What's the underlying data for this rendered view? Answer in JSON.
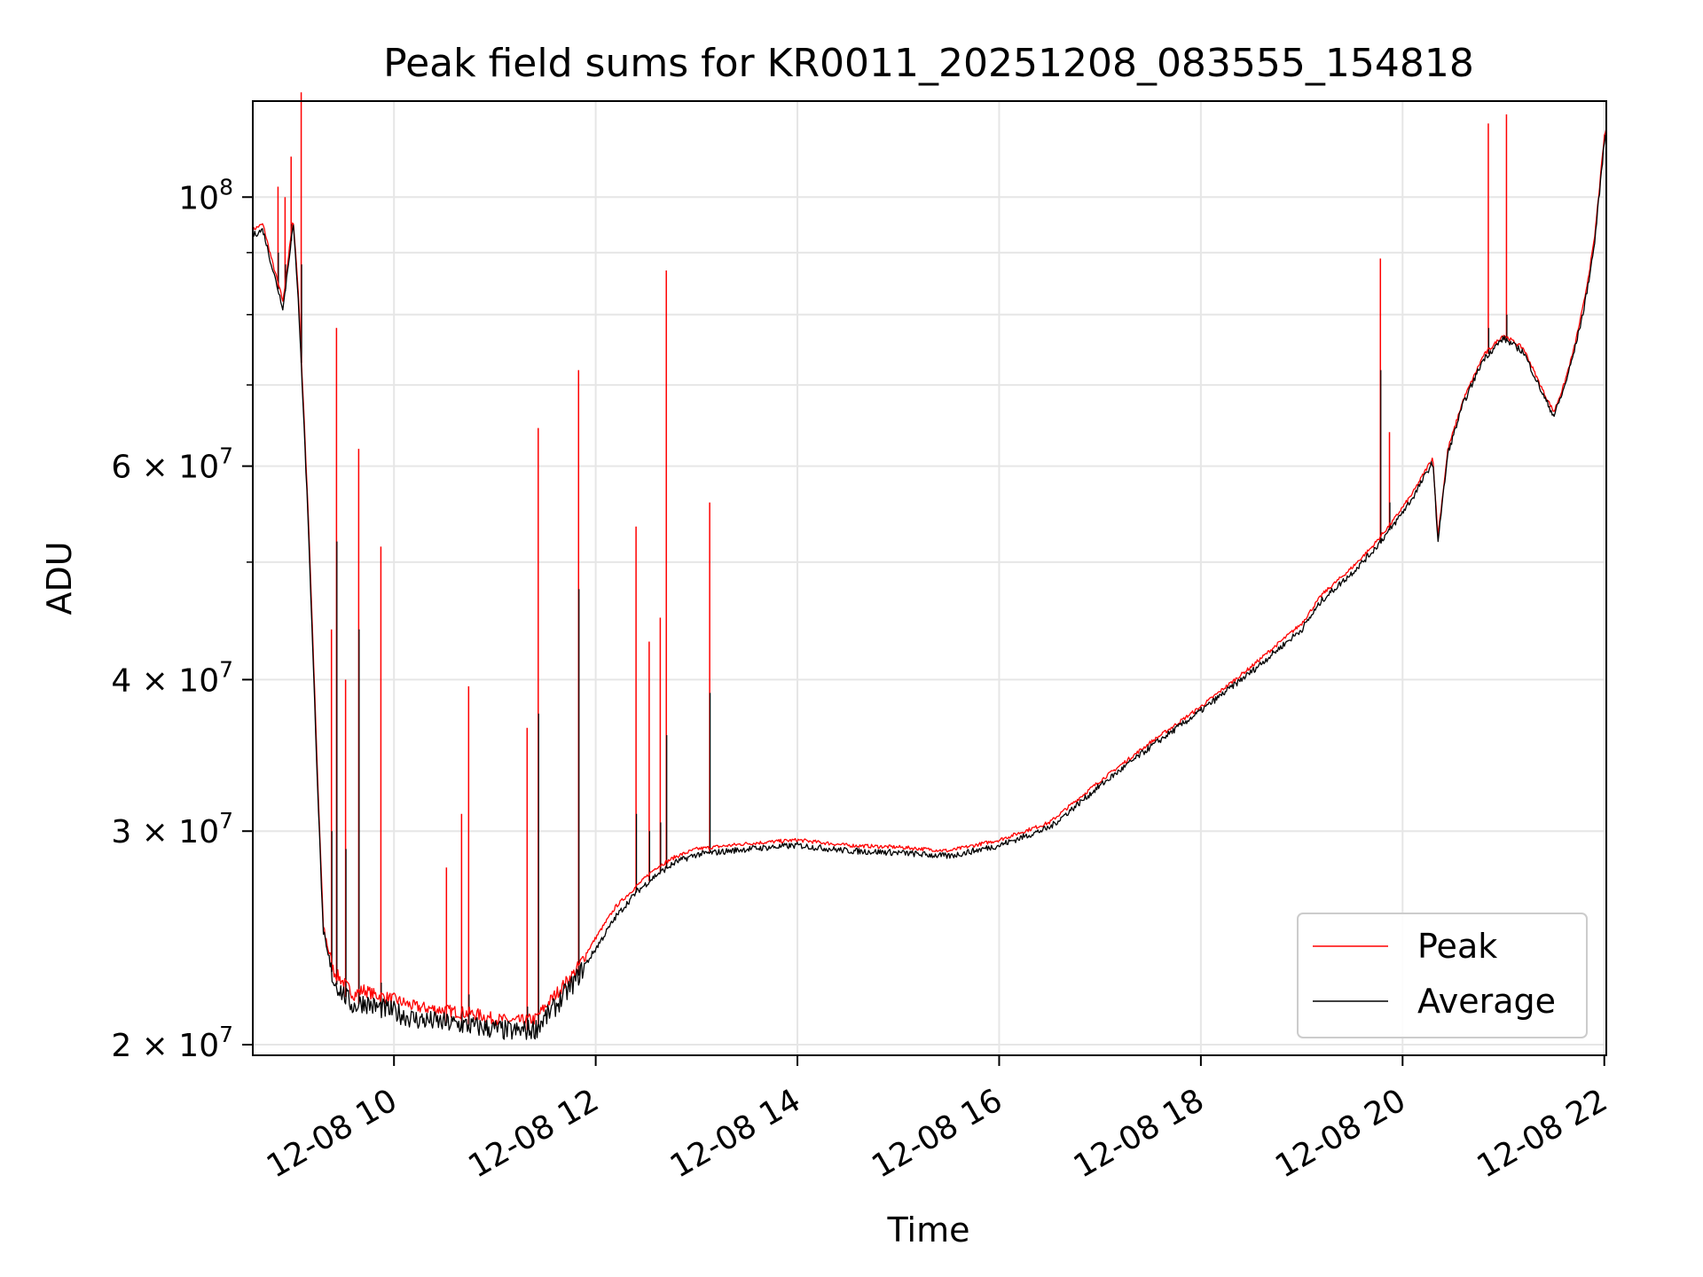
{
  "chart_data": {
    "type": "line",
    "title": "Peak field sums for KR0011_20251208_083555_154818",
    "xlabel": "Time",
    "ylabel": "ADU",
    "yscale": "log",
    "ylim": [
      19600000,
      120000000
    ],
    "xlim_hours": [
      8.6,
      22.02
    ],
    "grid": true,
    "legend_position": "lower-right",
    "x_ticks": [
      {
        "hour": 10,
        "label": "12-08 10"
      },
      {
        "hour": 12,
        "label": "12-08 12"
      },
      {
        "hour": 14,
        "label": "12-08 14"
      },
      {
        "hour": 16,
        "label": "12-08 16"
      },
      {
        "hour": 18,
        "label": "12-08 18"
      },
      {
        "hour": 20,
        "label": "12-08 20"
      },
      {
        "hour": 22,
        "label": "12-08 22"
      }
    ],
    "y_major_ticks": [
      {
        "value": 20000000,
        "mantissa": "2",
        "exp": "7"
      },
      {
        "value": 30000000,
        "mantissa": "3",
        "exp": "7"
      },
      {
        "value": 40000000,
        "mantissa": "4",
        "exp": "7"
      },
      {
        "value": 60000000,
        "mantissa": "6",
        "exp": "7"
      },
      {
        "value": 100000000,
        "mantissa": "",
        "exp": "8"
      }
    ],
    "y_minor_gridlines": [
      50000000,
      70000000,
      80000000,
      90000000
    ],
    "series": [
      {
        "name": "Peak",
        "color": "#ff0000",
        "x_hours": [
          8.6,
          8.7,
          8.8,
          8.9,
          9.0,
          9.05,
          9.1,
          9.15,
          9.2,
          9.25,
          9.3,
          9.4,
          9.5,
          9.6,
          9.7,
          9.8,
          10.0,
          10.2,
          10.4,
          10.6,
          10.8,
          11.0,
          11.2,
          11.4,
          11.6,
          11.8,
          12.0,
          12.2,
          12.4,
          12.6,
          12.8,
          13.0,
          13.5,
          14.0,
          14.5,
          15.0,
          15.5,
          16.0,
          16.5,
          17.0,
          17.5,
          18.0,
          18.5,
          19.0,
          19.2,
          19.5,
          19.7,
          19.9,
          20.1,
          20.3,
          20.35,
          20.45,
          20.6,
          20.8,
          21.0,
          21.2,
          21.4,
          21.5,
          21.6,
          21.7,
          21.8,
          21.9,
          22.0,
          22.02
        ],
        "values": [
          94000000,
          95000000,
          88000000,
          82000000,
          96000000,
          84000000,
          68000000,
          55000000,
          42000000,
          32000000,
          25000000,
          23000000,
          22500000,
          22000000,
          22200000,
          22000000,
          21800000,
          21500000,
          21400000,
          21300000,
          21200000,
          21000000,
          20900000,
          21000000,
          22000000,
          23000000,
          24500000,
          26000000,
          27000000,
          28000000,
          28600000,
          29000000,
          29300000,
          29500000,
          29200000,
          29100000,
          28900000,
          29500000,
          30500000,
          33000000,
          35500000,
          38000000,
          41000000,
          44500000,
          47000000,
          49500000,
          51500000,
          54000000,
          57000000,
          61000000,
          52500000,
          62000000,
          68000000,
          74000000,
          77000000,
          75000000,
          69000000,
          66500000,
          70000000,
          75000000,
          82000000,
          92000000,
          112000000,
          114000000
        ]
      },
      {
        "name": "Average",
        "color": "#000000",
        "x_hours": [
          8.6,
          8.7,
          8.8,
          8.9,
          9.0,
          9.05,
          9.1,
          9.15,
          9.2,
          9.25,
          9.3,
          9.4,
          9.5,
          9.6,
          9.7,
          9.8,
          10.0,
          10.2,
          10.4,
          10.6,
          10.8,
          11.0,
          11.2,
          11.4,
          11.6,
          11.8,
          12.0,
          12.2,
          12.4,
          12.6,
          12.8,
          13.0,
          13.5,
          14.0,
          14.5,
          15.0,
          15.5,
          16.0,
          16.5,
          17.0,
          17.5,
          18.0,
          18.5,
          19.0,
          19.2,
          19.5,
          19.7,
          19.9,
          20.1,
          20.3,
          20.35,
          20.45,
          20.6,
          20.8,
          21.0,
          21.2,
          21.4,
          21.5,
          21.6,
          21.7,
          21.8,
          21.9,
          22.0,
          22.02
        ],
        "values": [
          93000000,
          94000000,
          87000000,
          81000000,
          95000000,
          83000000,
          67000000,
          54000000,
          41000000,
          31500000,
          24500000,
          22600000,
          22000000,
          21500000,
          21700000,
          21500000,
          21300000,
          21000000,
          20900000,
          20800000,
          20700000,
          20600000,
          20500000,
          20600000,
          21500000,
          22600000,
          24000000,
          25500000,
          26700000,
          27600000,
          28300000,
          28700000,
          29000000,
          29200000,
          28900000,
          28800000,
          28600000,
          29200000,
          30200000,
          32700000,
          35200000,
          37700000,
          40600000,
          44000000,
          46500000,
          49000000,
          51000000,
          53500000,
          56500000,
          60500000,
          52000000,
          61500000,
          67500000,
          73500000,
          76500000,
          74500000,
          68500000,
          66000000,
          69500000,
          74500000,
          81000000,
          91000000,
          111000000,
          113000000
        ]
      }
    ],
    "spikes": [
      {
        "hour": 8.85,
        "peak": 102000000,
        "average": 90000000
      },
      {
        "hour": 8.92,
        "peak": 100000000,
        "average": 88000000
      },
      {
        "hour": 8.98,
        "peak": 108000000,
        "average": 95000000
      },
      {
        "hour": 9.08,
        "peak": 122000000,
        "average": 88000000
      },
      {
        "hour": 9.43,
        "peak": 78000000,
        "average": 52000000
      },
      {
        "hour": 9.65,
        "peak": 62000000,
        "average": 44000000
      },
      {
        "hour": 9.87,
        "peak": 51500000,
        "average": 22500000
      },
      {
        "hour": 9.38,
        "peak": 44000000,
        "average": 30000000
      },
      {
        "hour": 9.52,
        "peak": 40000000,
        "average": 29000000
      },
      {
        "hour": 10.74,
        "peak": 39500000,
        "average": 22000000
      },
      {
        "hour": 10.67,
        "peak": 31000000,
        "average": 21500000
      },
      {
        "hour": 10.52,
        "peak": 28000000,
        "average": 21200000
      },
      {
        "hour": 11.32,
        "peak": 36500000,
        "average": 21500000
      },
      {
        "hour": 11.43,
        "peak": 64500000,
        "average": 37500000
      },
      {
        "hour": 11.83,
        "peak": 72000000,
        "average": 47500000
      },
      {
        "hour": 12.4,
        "peak": 53500000,
        "average": 31000000
      },
      {
        "hour": 12.53,
        "peak": 43000000,
        "average": 30000000
      },
      {
        "hour": 12.64,
        "peak": 45000000,
        "average": 30500000
      },
      {
        "hour": 12.7,
        "peak": 87000000,
        "average": 36000000
      },
      {
        "hour": 13.13,
        "peak": 56000000,
        "average": 39000000
      },
      {
        "hour": 19.78,
        "peak": 89000000,
        "average": 72000000
      },
      {
        "hour": 19.87,
        "peak": 64000000,
        "average": 56000000
      },
      {
        "hour": 20.85,
        "peak": 115000000,
        "average": 78000000
      },
      {
        "hour": 21.03,
        "peak": 117000000,
        "average": 80000000
      }
    ]
  }
}
